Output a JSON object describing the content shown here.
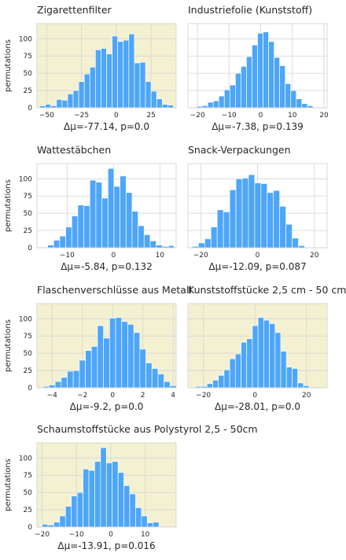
{
  "chart_data": [
    {
      "type": "bar",
      "title": "Zigarettenfilter",
      "xlabel": "Δμ=-77.14, p=0.0",
      "ylabel": "permutations",
      "xlim": [
        -57,
        43
      ],
      "ylim": [
        0,
        122
      ],
      "xticks": [
        -50,
        -25,
        0,
        25
      ],
      "yticks": [
        0,
        25,
        50,
        75,
        100
      ],
      "highlight": true,
      "bins": {
        "start": -55,
        "width": 4,
        "values": [
          3,
          5,
          3,
          12,
          11,
          20,
          25,
          38,
          49,
          59,
          84,
          86,
          78,
          104,
          96,
          98,
          107,
          65,
          66,
          38,
          24,
          13,
          5,
          4
        ]
      }
    },
    {
      "type": "bar",
      "title": "Industriefolie (Kunststoff)",
      "xlabel": "Δμ=-7.38, p=0.139",
      "ylabel": "",
      "xlim": [
        -23,
        21
      ],
      "ylim": [
        0,
        122
      ],
      "xticks": [
        -20,
        -10,
        0,
        10,
        20
      ],
      "yticks": [
        0,
        25,
        50,
        75,
        100
      ],
      "highlight": false,
      "bins": {
        "start": -22,
        "width": 1.75,
        "values": [
          1,
          2,
          3,
          8,
          10,
          17,
          26,
          33,
          50,
          60,
          74,
          91,
          108,
          110,
          96,
          73,
          61,
          35,
          25,
          13,
          6,
          3
        ]
      }
    },
    {
      "type": "bar",
      "title": "Wattestäbchen",
      "xlabel": "Δμ=-5.84, p=0.132",
      "ylabel": "permutations",
      "xlim": [
        -16.5,
        13.5
      ],
      "ylim": [
        0,
        122
      ],
      "xticks": [
        -10,
        0,
        10
      ],
      "yticks": [
        0,
        25,
        50,
        75,
        100
      ],
      "highlight": false,
      "bins": {
        "start": -15.5,
        "width": 1.3,
        "values": [
          1,
          4,
          11,
          17,
          30,
          46,
          62,
          61,
          98,
          95,
          72,
          115,
          89,
          104,
          80,
          53,
          32,
          19,
          10,
          4,
          2,
          3
        ]
      }
    },
    {
      "type": "bar",
      "title": "Snack-Verpackungen",
      "xlabel": "Δμ=-12.09, p=0.087",
      "ylabel": "",
      "xlim": [
        -24.5,
        24.5
      ],
      "ylim": [
        0,
        122
      ],
      "xticks": [
        -20,
        0,
        20
      ],
      "yticks": [
        0,
        25,
        50,
        75,
        100
      ],
      "highlight": false,
      "bins": {
        "start": -23,
        "width": 2.2,
        "values": [
          2,
          7,
          13,
          30,
          55,
          52,
          84,
          100,
          101,
          106,
          94,
          93,
          80,
          83,
          60,
          34,
          14,
          3
        ]
      }
    },
    {
      "type": "bar",
      "title": "Flaschenverschlüsse aus Metall",
      "xlabel": "Δμ=-9.2, p=0.0",
      "ylabel": "permutations",
      "xlim": [
        -5,
        4.2
      ],
      "ylim": [
        0,
        122
      ],
      "xticks": [
        -4,
        -2,
        0,
        2,
        4
      ],
      "yticks": [
        0,
        25,
        50,
        75,
        100
      ],
      "highlight": true,
      "bins": {
        "start": -4.6,
        "width": 0.4,
        "values": [
          2,
          4,
          9,
          15,
          24,
          25,
          40,
          54,
          60,
          90,
          72,
          101,
          102,
          96,
          92,
          80,
          56,
          36,
          28,
          20,
          9,
          3
        ]
      }
    },
    {
      "type": "bar",
      "title": "Kunststoffstücke 2,5 cm - 50 cm",
      "xlabel": "Δμ=-28.01, p=0.0",
      "ylabel": "",
      "xlim": [
        -26,
        28
      ],
      "ylim": [
        0,
        122
      ],
      "xticks": [
        -20,
        0,
        20
      ],
      "yticks": [
        0,
        25,
        50,
        75,
        100
      ],
      "highlight": true,
      "bins": {
        "start": -23,
        "width": 2.2,
        "values": [
          2,
          2,
          6,
          11,
          18,
          26,
          42,
          49,
          66,
          71,
          90,
          102,
          98,
          93,
          80,
          53,
          30,
          28,
          7,
          3
        ]
      }
    },
    {
      "type": "bar",
      "title": "Schaumstoffstücke aus Polystyrol 2,5 - 50cm",
      "xlabel": "Δμ=-13.91, p=0.016",
      "ylabel": "permutations",
      "xlim": [
        -21.5,
        19
      ],
      "ylim": [
        0,
        122
      ],
      "xticks": [
        -20,
        -10,
        0,
        10
      ],
      "yticks": [
        0,
        25,
        50,
        75,
        100
      ],
      "highlight": true,
      "bins": {
        "start": -20,
        "width": 1.7,
        "values": [
          4,
          3,
          7,
          16,
          30,
          45,
          50,
          84,
          82,
          95,
          115,
          93,
          95,
          79,
          60,
          48,
          28,
          16,
          6,
          7
        ]
      }
    }
  ]
}
